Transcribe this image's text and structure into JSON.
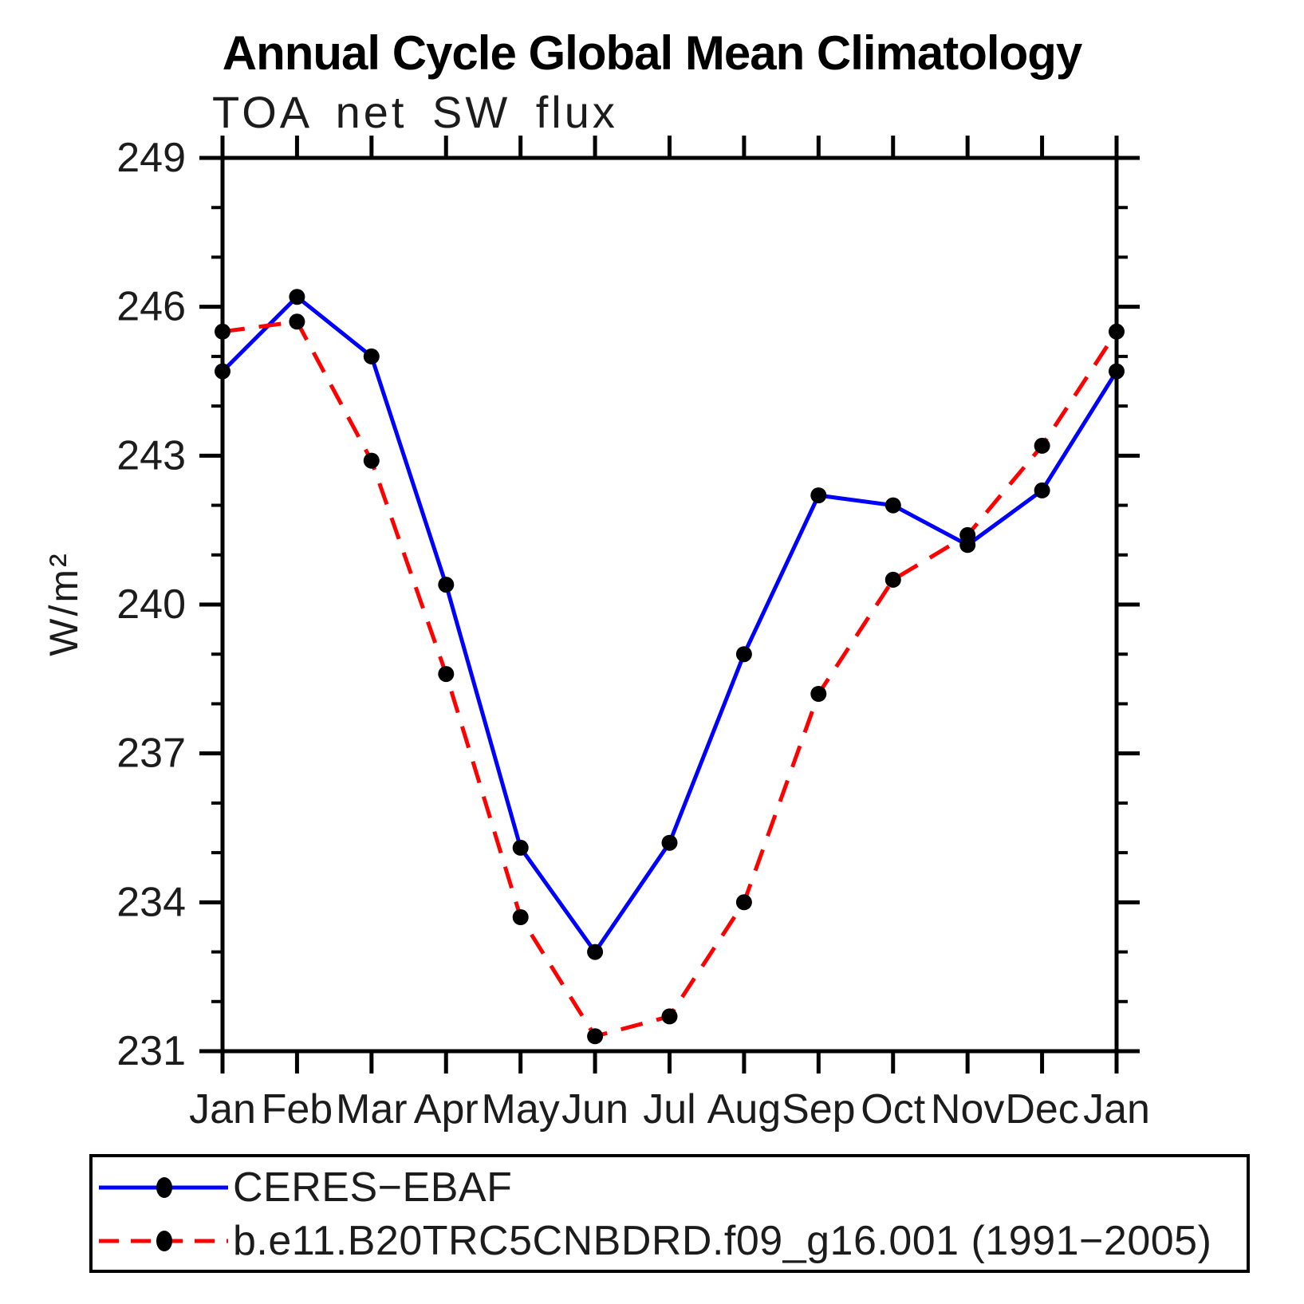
{
  "chart_data": {
    "type": "line",
    "title": "Annual Cycle Global Mean Climatology",
    "subtitle": "TOA net SW flux",
    "xlabel": "",
    "ylabel": "W/m²",
    "categories": [
      "Jan",
      "Feb",
      "Mar",
      "Apr",
      "May",
      "Jun",
      "Jul",
      "Aug",
      "Sep",
      "Oct",
      "Nov",
      "Dec",
      "Jan"
    ],
    "ylim": [
      231,
      249
    ],
    "yticks": [
      231,
      234,
      237,
      240,
      243,
      246,
      249
    ],
    "ytick_minor_interval": 1,
    "grid": false,
    "legend_position": "bottom-left",
    "axis_color": "#000000",
    "marker_color": "#000000",
    "series": [
      {
        "name": "CERES−EBAF",
        "color": "#0000ff",
        "line_style": "solid",
        "marker": "circle",
        "values": [
          244.7,
          246.2,
          245.0,
          240.4,
          235.1,
          233.0,
          235.2,
          239.0,
          242.2,
          242.0,
          241.2,
          242.3,
          244.7
        ]
      },
      {
        "name": "b.e11.B20TRC5CNBDRD.f09_g16.001 (1991−2005)",
        "color": "#ff0000",
        "line_style": "dashed",
        "marker": "circle",
        "values": [
          245.5,
          245.7,
          242.9,
          238.6,
          233.7,
          231.3,
          231.7,
          234.0,
          238.2,
          240.5,
          241.4,
          243.2,
          245.5
        ]
      }
    ]
  }
}
